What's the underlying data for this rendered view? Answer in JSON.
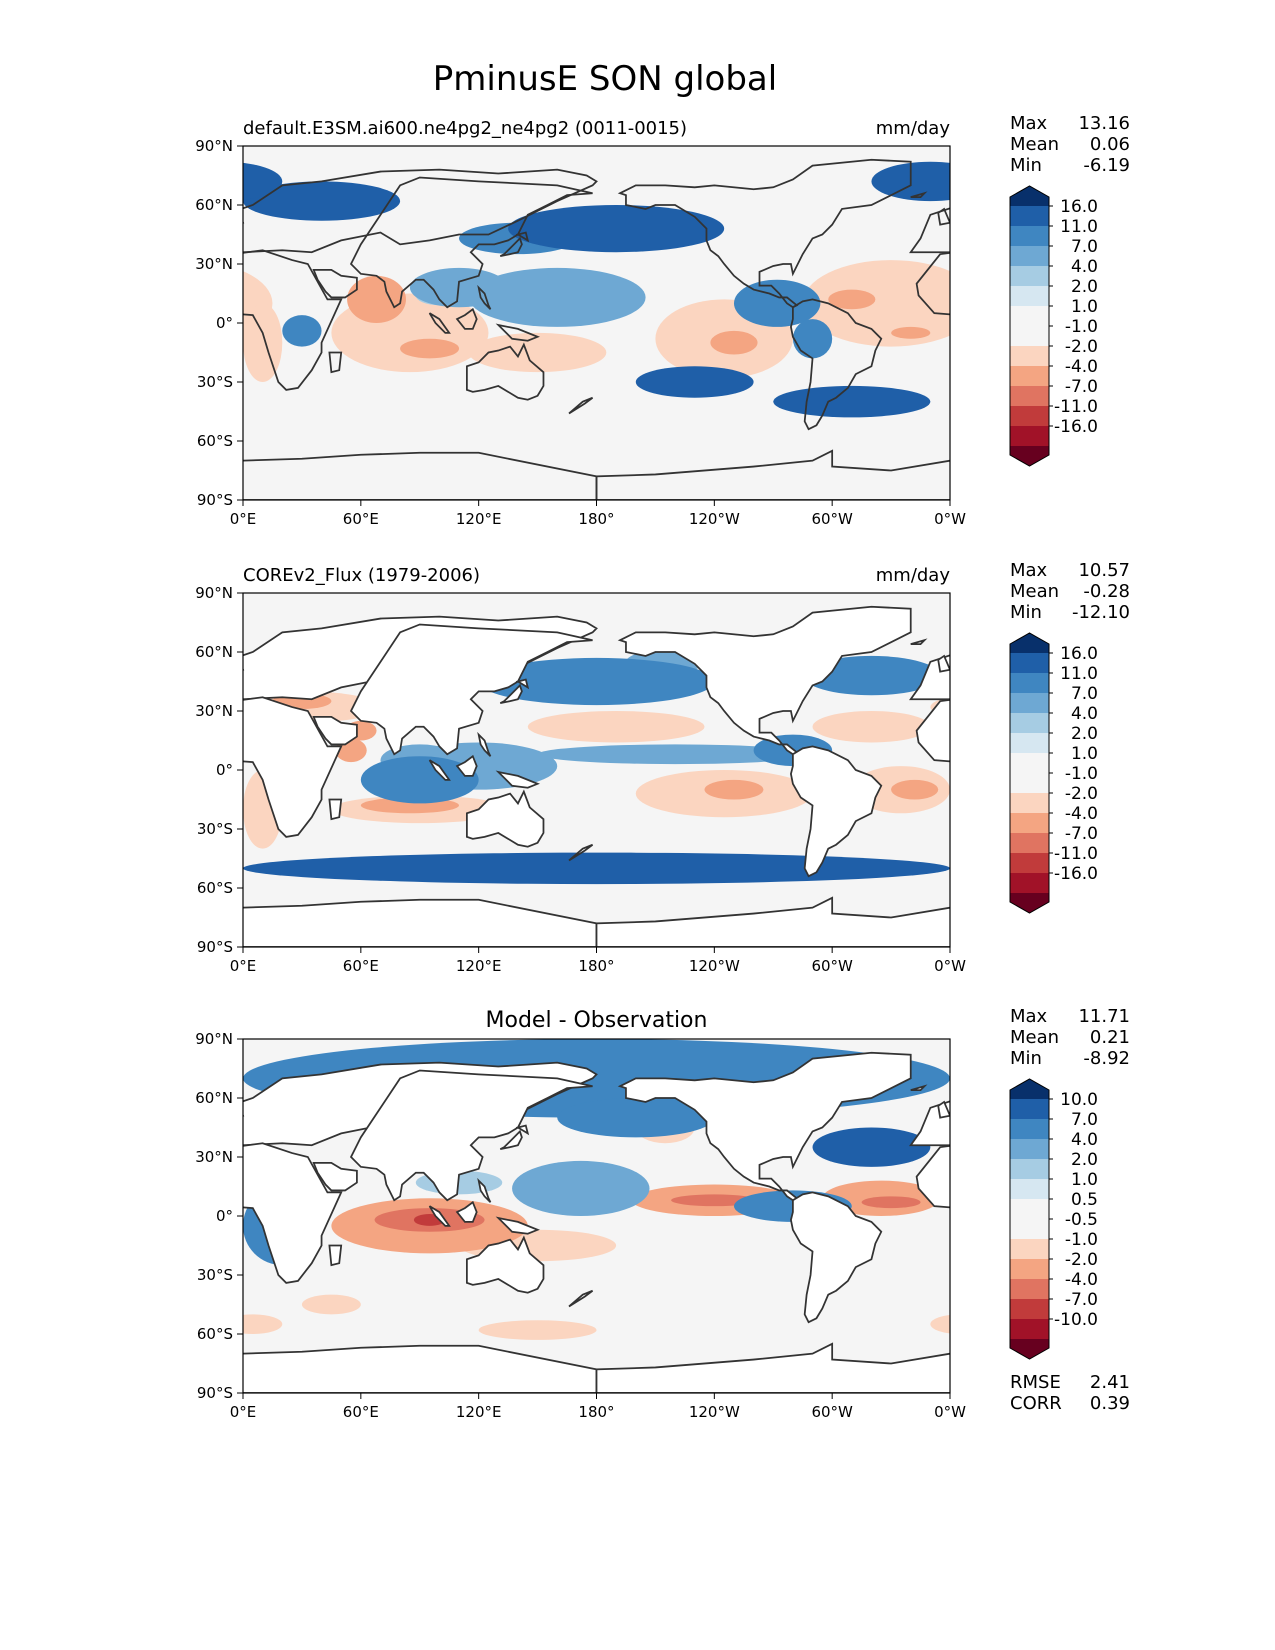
{
  "figure": {
    "title": "PminusE SON global",
    "colors": {
      "blue": [
        "#08306b",
        "#1f5fa8",
        "#3f86c1",
        "#6ea8d3",
        "#a6cce3",
        "#d6e7f1"
      ],
      "neutral": "#f5f5f5",
      "red": [
        "#fbd5c0",
        "#f4a582",
        "#e07461",
        "#c13b3b",
        "#a11228",
        "#67001f"
      ],
      "land": "#ffffff",
      "coast": "#333333"
    }
  },
  "chart_data": [
    {
      "type": "heatmap",
      "title_left": "default.E3SM.ai600.ne4pg2_ne4pg2 (0011-0015)",
      "title_center": "",
      "units": "mm/day",
      "x_ticks": [
        "0°E",
        "60°E",
        "120°E",
        "180°",
        "120°W",
        "60°W",
        "0°W"
      ],
      "y_ticks": [
        "90°N",
        "60°N",
        "30°N",
        "0°",
        "30°S",
        "60°S",
        "90°S"
      ],
      "xlim": [
        0,
        360
      ],
      "ylim": [
        -90,
        90
      ],
      "stats": [
        {
          "label": "Max",
          "value": "13.16"
        },
        {
          "label": "Mean",
          "value": "0.06"
        },
        {
          "label": "Min",
          "value": "-6.19"
        }
      ],
      "colorbar_levels": [
        "16.0",
        "11.0",
        "7.0",
        "4.0",
        "2.0",
        "1.0",
        "-1.0",
        "-2.0",
        "-4.0",
        "-7.0",
        "-11.0",
        "-16.0"
      ],
      "mask_land": false,
      "features": [
        {
          "lon": 160,
          "lat": 13,
          "rx": 45,
          "ry": 15,
          "level": 3
        },
        {
          "lon": 172,
          "lat": 8,
          "rx": 18,
          "ry": 7,
          "level": 2
        },
        {
          "lon": 110,
          "lat": 18,
          "rx": 25,
          "ry": 10,
          "level": 3
        },
        {
          "lon": 100,
          "lat": 14,
          "rx": 12,
          "ry": 5,
          "level": 2
        },
        {
          "lon": 190,
          "lat": 48,
          "rx": 55,
          "ry": 12,
          "level": 5
        },
        {
          "lon": 140,
          "lat": 43,
          "rx": 30,
          "ry": 8,
          "level": 4
        },
        {
          "lon": 40,
          "lat": 62,
          "rx": 40,
          "ry": 10,
          "level": 5
        },
        {
          "lon": 272,
          "lat": 10,
          "rx": 22,
          "ry": 12,
          "level": 4
        },
        {
          "lon": 290,
          "lat": -8,
          "rx": 10,
          "ry": 10,
          "level": 4
        },
        {
          "lon": 30,
          "lat": -4,
          "rx": 10,
          "ry": 8,
          "level": 4
        },
        {
          "lon": 350,
          "lat": 72,
          "rx": 30,
          "ry": 10,
          "level": 5
        },
        {
          "lon": 230,
          "lat": -30,
          "rx": 30,
          "ry": 8,
          "level": 5
        },
        {
          "lon": 310,
          "lat": -40,
          "rx": 40,
          "ry": 8,
          "level": 5
        },
        {
          "lon": 85,
          "lat": -5,
          "rx": 40,
          "ry": 20,
          "level": -1
        },
        {
          "lon": 68,
          "lat": 12,
          "rx": 15,
          "ry": 12,
          "level": -2
        },
        {
          "lon": 95,
          "lat": -13,
          "rx": 15,
          "ry": 5,
          "level": -2
        },
        {
          "lon": 150,
          "lat": -15,
          "rx": 35,
          "ry": 10,
          "level": -1
        },
        {
          "lon": 245,
          "lat": -8,
          "rx": 35,
          "ry": 20,
          "level": -1
        },
        {
          "lon": 250,
          "lat": -10,
          "rx": 12,
          "ry": 6,
          "level": -2
        },
        {
          "lon": 330,
          "lat": 10,
          "rx": 45,
          "ry": 22,
          "level": -1
        },
        {
          "lon": 310,
          "lat": 12,
          "rx": 12,
          "ry": 5,
          "level": -2
        },
        {
          "lon": 340,
          "lat": -5,
          "rx": 10,
          "ry": 3,
          "level": -2
        },
        {
          "lon": 10,
          "lat": -10,
          "rx": 10,
          "ry": 20,
          "level": -1
        }
      ]
    },
    {
      "type": "heatmap",
      "title_left": "COREv2_Flux (1979-2006)",
      "title_center": "",
      "units": "mm/day",
      "x_ticks": [
        "0°E",
        "60°E",
        "120°E",
        "180°",
        "120°W",
        "60°W",
        "0°W"
      ],
      "y_ticks": [
        "90°N",
        "60°N",
        "30°N",
        "0°",
        "30°S",
        "60°S",
        "90°S"
      ],
      "xlim": [
        0,
        360
      ],
      "ylim": [
        -90,
        90
      ],
      "stats": [
        {
          "label": "Max",
          "value": "10.57"
        },
        {
          "label": "Mean",
          "value": "-0.28"
        },
        {
          "label": "Min",
          "value": "-12.10"
        }
      ],
      "colorbar_levels": [
        "16.0",
        "11.0",
        "7.0",
        "4.0",
        "2.0",
        "1.0",
        "-1.0",
        "-2.0",
        "-4.0",
        "-7.0",
        "-11.0",
        "-16.0"
      ],
      "mask_land": true,
      "features": [
        {
          "lon": 220,
          "lat": 8,
          "rx": 70,
          "ry": 5,
          "level": 3
        },
        {
          "lon": 225,
          "lat": 8,
          "rx": 30,
          "ry": 2.5,
          "level": 2
        },
        {
          "lon": 120,
          "lat": 2,
          "rx": 40,
          "ry": 12,
          "level": 3
        },
        {
          "lon": 90,
          "lat": 5,
          "rx": 20,
          "ry": 8,
          "level": 3
        },
        {
          "lon": 180,
          "lat": 45,
          "rx": 60,
          "ry": 12,
          "level": 4
        },
        {
          "lon": 215,
          "lat": 55,
          "rx": 20,
          "ry": 6,
          "level": 3
        },
        {
          "lon": 320,
          "lat": 48,
          "rx": 35,
          "ry": 10,
          "level": 4
        },
        {
          "lon": 280,
          "lat": 10,
          "rx": 20,
          "ry": 8,
          "level": 4
        },
        {
          "lon": 180,
          "lat": -50,
          "rx": 180,
          "ry": 8,
          "level": 5
        },
        {
          "lon": 90,
          "lat": -5,
          "rx": 30,
          "ry": 12,
          "level": 4
        },
        {
          "lon": 190,
          "lat": 22,
          "rx": 45,
          "ry": 8,
          "level": -1
        },
        {
          "lon": 245,
          "lat": -12,
          "rx": 45,
          "ry": 12,
          "level": -1
        },
        {
          "lon": 250,
          "lat": -10,
          "rx": 15,
          "ry": 5,
          "level": -2
        },
        {
          "lon": 90,
          "lat": -20,
          "rx": 45,
          "ry": 7,
          "level": -1
        },
        {
          "lon": 85,
          "lat": -18,
          "rx": 25,
          "ry": 4,
          "level": -2
        },
        {
          "lon": 335,
          "lat": -10,
          "rx": 25,
          "ry": 12,
          "level": -1
        },
        {
          "lon": 342,
          "lat": -10,
          "rx": 12,
          "ry": 5,
          "level": -2
        },
        {
          "lon": 320,
          "lat": 22,
          "rx": 30,
          "ry": 8,
          "level": -1
        },
        {
          "lon": 10,
          "lat": -20,
          "rx": 10,
          "ry": 20,
          "level": -1
        },
        {
          "lon": 30,
          "lat": 32,
          "rx": 40,
          "ry": 8,
          "level": -1
        },
        {
          "lon": 30,
          "lat": 35,
          "rx": 15,
          "ry": 4,
          "level": -2
        },
        {
          "lon": 60,
          "lat": 20,
          "rx": 8,
          "ry": 5,
          "level": -2
        },
        {
          "lon": 55,
          "lat": 10,
          "rx": 8,
          "ry": 6,
          "level": -2
        }
      ]
    },
    {
      "type": "heatmap",
      "title_left": "",
      "title_center": "Model - Observation",
      "units": "",
      "x_ticks": [
        "0°E",
        "60°E",
        "120°E",
        "180°",
        "120°W",
        "60°W",
        "0°W"
      ],
      "y_ticks": [
        "90°N",
        "60°N",
        "30°N",
        "0°",
        "30°S",
        "60°S",
        "90°S"
      ],
      "xlim": [
        0,
        360
      ],
      "ylim": [
        -90,
        90
      ],
      "stats": [
        {
          "label": "Max",
          "value": "11.71"
        },
        {
          "label": "Mean",
          "value": "0.21"
        },
        {
          "label": "Min",
          "value": "-8.92"
        }
      ],
      "colorbar_levels": [
        "10.0",
        "7.0",
        "4.0",
        "2.0",
        "1.0",
        "0.5",
        "-0.5",
        "-1.0",
        "-2.0",
        "-4.0",
        "-7.0",
        "-10.0"
      ],
      "bottom_stats": [
        {
          "label": "RMSE",
          "value": "2.41"
        },
        {
          "label": "CORR",
          "value": "0.39"
        }
      ],
      "mask_land": true,
      "features": [
        {
          "lon": 172,
          "lat": 14,
          "rx": 35,
          "ry": 14,
          "level": 3
        },
        {
          "lon": 175,
          "lat": 14,
          "rx": 20,
          "ry": 8,
          "level": 2
        },
        {
          "lon": 178,
          "lat": 15,
          "rx": 8,
          "ry": 3,
          "level": 1
        },
        {
          "lon": 110,
          "lat": 17,
          "rx": 22,
          "ry": 6,
          "level": 2
        },
        {
          "lon": 180,
          "lat": 70,
          "rx": 180,
          "ry": 20,
          "level": 4
        },
        {
          "lon": 200,
          "lat": 50,
          "rx": 40,
          "ry": 10,
          "level": 4
        },
        {
          "lon": 280,
          "lat": 5,
          "rx": 30,
          "ry": 8,
          "level": 4
        },
        {
          "lon": 20,
          "lat": -5,
          "rx": 20,
          "ry": 20,
          "level": 4
        },
        {
          "lon": 320,
          "lat": 35,
          "rx": 30,
          "ry": 10,
          "level": 5
        },
        {
          "lon": 95,
          "lat": -5,
          "rx": 50,
          "ry": 14,
          "level": -2
        },
        {
          "lon": 95,
          "lat": -2,
          "rx": 28,
          "ry": 6,
          "level": -3
        },
        {
          "lon": 95,
          "lat": -2,
          "rx": 8,
          "ry": 3,
          "level": -4
        },
        {
          "lon": 150,
          "lat": -15,
          "rx": 40,
          "ry": 8,
          "level": -1
        },
        {
          "lon": 240,
          "lat": 8,
          "rx": 42,
          "ry": 8,
          "level": -2
        },
        {
          "lon": 240,
          "lat": 8,
          "rx": 22,
          "ry": 3,
          "level": -3
        },
        {
          "lon": 325,
          "lat": 9,
          "rx": 30,
          "ry": 9,
          "level": -2
        },
        {
          "lon": 330,
          "lat": 7,
          "rx": 15,
          "ry": 3,
          "level": -3
        },
        {
          "lon": 215,
          "lat": 45,
          "rx": 15,
          "ry": 8,
          "level": -1
        },
        {
          "lon": 150,
          "lat": -58,
          "rx": 30,
          "ry": 5,
          "level": -1
        },
        {
          "lon": 45,
          "lat": -45,
          "rx": 15,
          "ry": 5,
          "level": -1
        },
        {
          "lon": 5,
          "lat": -55,
          "rx": 15,
          "ry": 5,
          "level": -1
        }
      ]
    }
  ]
}
